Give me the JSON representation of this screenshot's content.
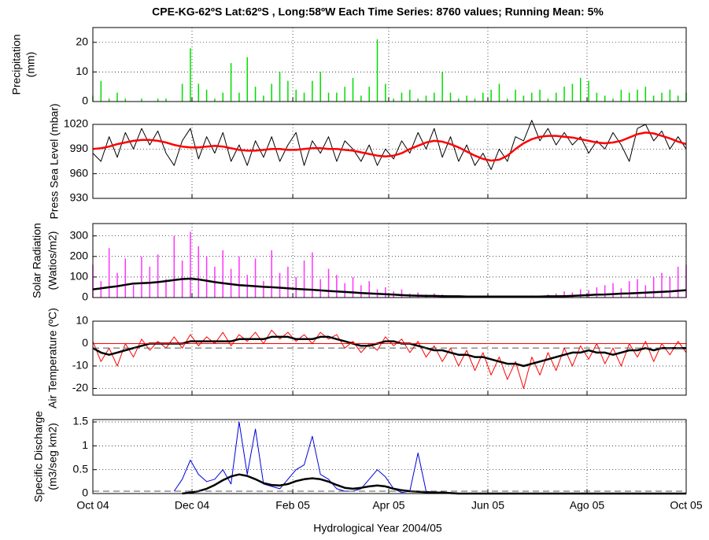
{
  "title": "CPE-KG-62ºS  Lat:62ºS , Long:58ºW     Each Time Series: 8760 values;    Running Mean: 5%",
  "xlabel": "Hydrological Year 2004/05",
  "xlim": [
    0,
    365
  ],
  "xticks": [
    {
      "value": 0,
      "label": "Oct 04"
    },
    {
      "value": 61,
      "label": "Dec 04"
    },
    {
      "value": 123,
      "label": "Feb 05"
    },
    {
      "value": 182,
      "label": "Apr 05"
    },
    {
      "value": 243,
      "label": "Jun 05"
    },
    {
      "value": 304,
      "label": "Ago 05"
    },
    {
      "value": 365,
      "label": "Oct 05"
    }
  ],
  "x": [
    0,
    5,
    10,
    15,
    20,
    25,
    30,
    35,
    40,
    45,
    50,
    55,
    60,
    65,
    70,
    75,
    80,
    85,
    90,
    95,
    100,
    105,
    110,
    115,
    120,
    125,
    130,
    135,
    140,
    145,
    150,
    155,
    160,
    165,
    170,
    175,
    180,
    185,
    190,
    195,
    200,
    205,
    210,
    215,
    220,
    225,
    230,
    235,
    240,
    245,
    250,
    255,
    260,
    265,
    270,
    275,
    280,
    285,
    290,
    295,
    300,
    305,
    310,
    315,
    320,
    325,
    330,
    335,
    340,
    345,
    350,
    355,
    360,
    365
  ],
  "chart_data": [
    {
      "type": "bar",
      "ylabel": [
        "Precipitation",
        "(mm)"
      ],
      "ylim": [
        0,
        25
      ],
      "yticks": [
        0,
        10,
        20
      ],
      "grid": true,
      "series": [
        {
          "color": "#00dd00",
          "mark": "stem",
          "values": [
            2,
            7,
            1,
            3,
            1,
            0,
            1,
            0,
            1,
            1,
            0,
            6,
            18,
            6,
            4,
            1,
            3,
            13,
            3,
            15,
            5,
            2,
            6,
            10,
            7,
            4,
            3,
            7,
            10,
            3,
            3,
            5,
            8,
            2,
            5,
            21,
            6,
            1,
            3,
            4,
            1,
            2,
            3,
            10,
            3,
            1,
            2,
            1,
            3,
            4,
            6,
            1,
            4,
            2,
            3,
            4,
            1,
            3,
            5,
            6,
            8,
            7,
            3,
            2,
            1,
            4,
            3,
            4,
            5,
            2,
            3,
            4,
            2,
            3
          ]
        }
      ]
    },
    {
      "type": "line",
      "ylabel": [
        "Press Sea Level (mbar)"
      ],
      "ylim": [
        930,
        1020
      ],
      "yticks": [
        930,
        960,
        990,
        1020
      ],
      "grid": true,
      "series": [
        {
          "color": "#000000",
          "mark": "line",
          "values": [
            985,
            975,
            1005,
            980,
            1010,
            990,
            1015,
            995,
            1012,
            985,
            970,
            1000,
            1015,
            978,
            1005,
            985,
            1010,
            975,
            995,
            970,
            1000,
            980,
            1005,
            975,
            995,
            1010,
            970,
            1000,
            985,
            1005,
            975,
            1000,
            990,
            975,
            995,
            970,
            990,
            978,
            1000,
            985,
            1010,
            990,
            1015,
            980,
            1005,
            975,
            995,
            970,
            985,
            965,
            990,
            975,
            1005,
            1000,
            1025,
            1000,
            1015,
            995,
            1010,
            995,
            1005,
            985,
            1000,
            990,
            1010,
            995,
            975,
            1015,
            1020,
            1000,
            1012,
            990,
            1005,
            990
          ]
        },
        {
          "color": "#ff0000",
          "mark": "mean",
          "values": [
            990,
            991,
            993,
            996,
            998,
            1000,
            1001,
            1001,
            1000,
            998,
            995,
            993,
            992,
            992,
            993,
            994,
            993,
            991,
            989,
            988,
            988,
            989,
            990,
            990,
            989,
            989,
            990,
            991,
            991,
            990,
            990,
            989,
            988,
            986,
            984,
            982,
            981,
            982,
            985,
            990,
            994,
            998,
            1000,
            999,
            996,
            992,
            987,
            982,
            978,
            976,
            977,
            982,
            990,
            997,
            1002,
            1005,
            1006,
            1006,
            1005,
            1004,
            1002,
            1000,
            998,
            997,
            998,
            1000,
            1004,
            1008,
            1010,
            1009,
            1006,
            1003,
            999,
            996
          ]
        }
      ]
    },
    {
      "type": "line",
      "ylabel": [
        "Solar Radiation",
        "(Watios/m2)"
      ],
      "ylim": [
        0,
        360
      ],
      "yticks": [
        0,
        100,
        200,
        300
      ],
      "grid": true,
      "series": [
        {
          "color": "#ff33ff",
          "mark": "stem",
          "values": [
            160,
            80,
            240,
            120,
            190,
            60,
            200,
            150,
            210,
            90,
            300,
            180,
            320,
            250,
            200,
            150,
            230,
            140,
            200,
            110,
            190,
            80,
            230,
            120,
            150,
            100,
            180,
            220,
            90,
            140,
            110,
            70,
            100,
            60,
            80,
            40,
            50,
            30,
            40,
            20,
            25,
            15,
            20,
            15,
            10,
            10,
            8,
            8,
            8,
            8,
            8,
            8,
            8,
            8,
            10,
            10,
            15,
            20,
            30,
            25,
            40,
            35,
            50,
            60,
            70,
            45,
            80,
            90,
            60,
            100,
            120,
            100,
            150,
            160
          ]
        },
        {
          "color": "#000000",
          "mark": "mean",
          "values": [
            40,
            45,
            50,
            55,
            62,
            68,
            70,
            72,
            75,
            80,
            85,
            90,
            92,
            88,
            82,
            75,
            70,
            65,
            60,
            58,
            55,
            52,
            50,
            48,
            45,
            42,
            40,
            38,
            35,
            32,
            30,
            27,
            25,
            22,
            20,
            18,
            16,
            14,
            12,
            10,
            9,
            8,
            8,
            7,
            6,
            6,
            5,
            5,
            5,
            5,
            5,
            5,
            5,
            5,
            5,
            5,
            6,
            6,
            7,
            8,
            10,
            12,
            14,
            15,
            17,
            19,
            20,
            22,
            24,
            26,
            28,
            30,
            33,
            36
          ]
        }
      ]
    },
    {
      "type": "line",
      "ylabel": [
        "Air Temperature  (ºC)"
      ],
      "ylim": [
        -23,
        10
      ],
      "yticks": [
        -20,
        -10,
        0,
        10
      ],
      "grid": true,
      "hlines": [
        {
          "value": 0,
          "color": "#ff0000",
          "dash": false
        },
        {
          "value": -2,
          "color": "#555555",
          "dash": true
        }
      ],
      "series": [
        {
          "color": "#ff0000",
          "mark": "line",
          "values": [
            1,
            -8,
            -2,
            -10,
            0,
            -6,
            2,
            -3,
            1,
            -2,
            3,
            -2,
            4,
            -1,
            3,
            0,
            5,
            -1,
            4,
            1,
            5,
            0,
            6,
            2,
            5,
            1,
            4,
            0,
            5,
            2,
            4,
            -2,
            1,
            -4,
            0,
            -3,
            3,
            -1,
            2,
            -4,
            1,
            -6,
            -1,
            -8,
            -2,
            -10,
            -3,
            -12,
            -4,
            -14,
            -6,
            -16,
            -8,
            -20,
            -6,
            -14,
            -4,
            -12,
            -2,
            -10,
            -1,
            -7,
            0,
            -9,
            -2,
            -10,
            0,
            -6,
            1,
            -8,
            0,
            -5,
            1,
            -4
          ]
        },
        {
          "color": "#000000",
          "mark": "mean",
          "values": [
            -2,
            -4,
            -5,
            -4,
            -3,
            -2,
            -1,
            0,
            0,
            0,
            0,
            0,
            1,
            1,
            1,
            1,
            1,
            1,
            2,
            2,
            2,
            2,
            3,
            3,
            3,
            2,
            2,
            2,
            3,
            3,
            2,
            1,
            0,
            -1,
            -1,
            0,
            1,
            1,
            0,
            0,
            -1,
            -2,
            -3,
            -3,
            -4,
            -5,
            -5,
            -6,
            -6,
            -7,
            -8,
            -9,
            -9,
            -10,
            -9,
            -8,
            -7,
            -6,
            -5,
            -4,
            -4,
            -3,
            -4,
            -4,
            -5,
            -4,
            -3,
            -3,
            -2,
            -3,
            -2,
            -2,
            -2,
            -2
          ]
        }
      ]
    },
    {
      "type": "line",
      "ylabel": [
        "Specific Discharge",
        "(m3/seg km2)"
      ],
      "ylim": [
        0,
        1.55
      ],
      "yticks": [
        0,
        0.5,
        1,
        1.5
      ],
      "grid": true,
      "hlines": [
        {
          "value": 0.05,
          "color": "#555555",
          "dash": true
        }
      ],
      "series": [
        {
          "color": "#0000dd",
          "mark": "line",
          "values": [
            null,
            null,
            null,
            null,
            null,
            null,
            null,
            null,
            null,
            null,
            0.05,
            0.3,
            0.7,
            0.4,
            0.25,
            0.3,
            0.5,
            0.2,
            1.5,
            0.4,
            1.35,
            0.2,
            0.15,
            0.1,
            0.3,
            0.5,
            0.6,
            1.2,
            0.4,
            0.3,
            0.1,
            0.05,
            0.05,
            0.1,
            0.3,
            0.5,
            0.35,
            0.1,
            0.02,
            0.05,
            0.85,
            0.05,
            0.02,
            0.01,
            0,
            0,
            0,
            0,
            0,
            0,
            0,
            0,
            0,
            0,
            0,
            0,
            0,
            0,
            0,
            0,
            0,
            0,
            0,
            0,
            0,
            0,
            0,
            0,
            0,
            0,
            0,
            0,
            0,
            0
          ]
        },
        {
          "color": "#000000",
          "mark": "mean",
          "values": [
            null,
            null,
            null,
            null,
            null,
            null,
            null,
            null,
            null,
            null,
            null,
            0,
            0.02,
            0.05,
            0.1,
            0.18,
            0.28,
            0.36,
            0.4,
            0.37,
            0.3,
            0.22,
            0.18,
            0.17,
            0.2,
            0.26,
            0.3,
            0.32,
            0.3,
            0.25,
            0.18,
            0.12,
            0.1,
            0.12,
            0.15,
            0.17,
            0.15,
            0.1,
            0.07,
            0.05,
            0.04,
            0.03,
            0.02,
            0.02,
            0.01,
            0,
            0,
            0,
            0,
            0,
            0,
            0,
            0,
            0,
            0,
            0,
            0,
            0,
            0,
            0,
            0,
            0,
            0,
            0,
            0,
            0,
            0,
            0,
            0,
            0,
            0,
            0,
            0,
            0
          ]
        }
      ]
    }
  ]
}
